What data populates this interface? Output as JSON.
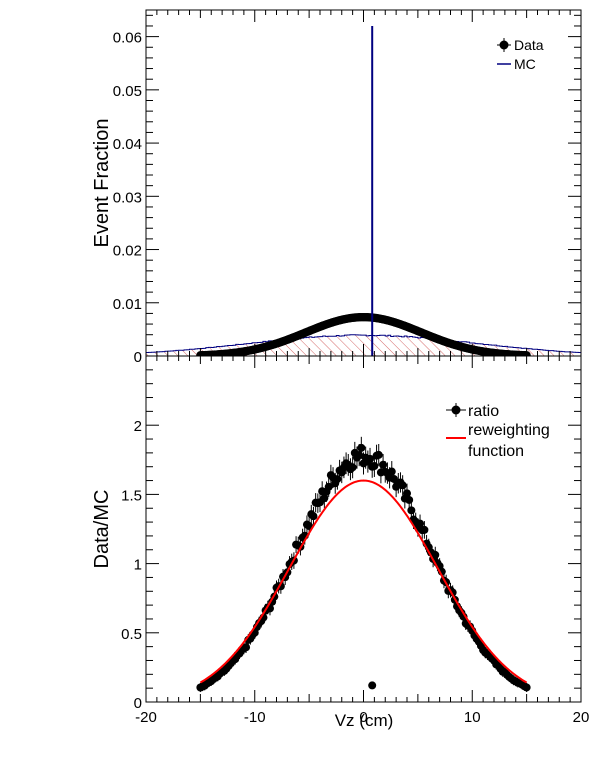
{
  "chart_data": [
    {
      "type": "line",
      "ylabel": "Event Fraction",
      "xlim": [
        -20,
        20
      ],
      "ylim": [
        0,
        0.065
      ],
      "yticks": [
        0,
        0.01,
        0.02,
        0.03,
        0.04,
        0.05,
        0.06
      ],
      "ytick_labels": [
        "0",
        "0.01",
        "0.02",
        "0.03",
        "0.04",
        "0.05",
        "0.06"
      ],
      "legend": {
        "placement": "top-right",
        "entries": [
          {
            "label": "Data",
            "style": "marker",
            "color": "#000000"
          },
          {
            "label": "MC",
            "style": "line",
            "color": "#000080"
          }
        ]
      },
      "series": [
        {
          "name": "Data",
          "style": "marker",
          "color": "#000000",
          "gauss": {
            "amp": 0.0073,
            "mean": 0.0,
            "sigma": 5.3,
            "xmin": -15,
            "xmax": 15
          }
        },
        {
          "name": "MC",
          "style": "hatched-hist",
          "color": "#000080",
          "hatch_color": "#cc4444",
          "gauss": {
            "amp": 0.0039,
            "mean": 0.0,
            "sigma": 10.5,
            "xmin": -20,
            "xmax": 20
          },
          "spike": {
            "x": 0.8,
            "y": 0.062
          }
        }
      ]
    },
    {
      "type": "scatter",
      "ylabel": "Data/MC",
      "xlabel": "Vz (cm)",
      "xlim": [
        -20,
        20
      ],
      "ylim": [
        0,
        2.5
      ],
      "xticks": [
        -20,
        -10,
        0,
        10,
        20
      ],
      "xtick_labels": [
        "-20",
        "-10",
        "0",
        "10",
        "20"
      ],
      "yticks": [
        0,
        0.5,
        1,
        1.5,
        2
      ],
      "ytick_labels": [
        "0",
        "0.5",
        "1",
        "1.5",
        "2"
      ],
      "legend": {
        "placement": "top-right",
        "entries": [
          {
            "label": "ratio",
            "style": "marker",
            "color": "#000000"
          },
          {
            "label": "reweighting",
            "label2": "function",
            "style": "line",
            "color": "#ff0000"
          }
        ]
      },
      "series": [
        {
          "name": "ratio",
          "style": "marker",
          "color": "#000000",
          "gauss": {
            "amp": 1.78,
            "mean": 0.0,
            "sigma": 6.3,
            "xmin": -15,
            "xmax": 15
          },
          "outlier": {
            "x": 0.8,
            "y": 0.12
          }
        },
        {
          "name": "reweighting function",
          "style": "line",
          "color": "#ff0000",
          "gauss": {
            "amp": 1.6,
            "mean": 0.0,
            "sigma": 6.8,
            "xmin": -15,
            "xmax": 15
          }
        }
      ]
    }
  ]
}
